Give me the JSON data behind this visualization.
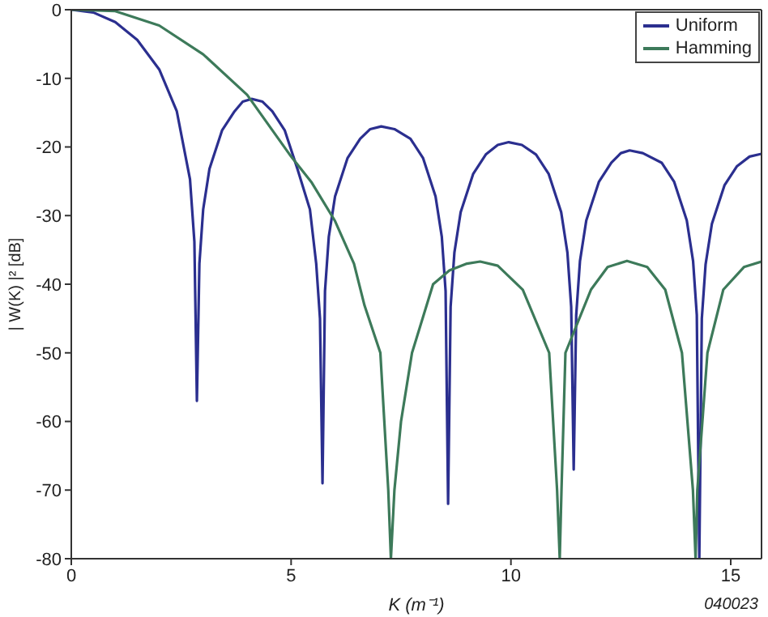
{
  "chart_data": {
    "type": "line",
    "xlabel": "K (m⁻¹)",
    "ylabel": "| W(K) |² [dB]",
    "xlim": [
      0,
      15.7
    ],
    "xticks": [
      0,
      5,
      10,
      15
    ],
    "ylim": [
      -80,
      0
    ],
    "yticks": [
      0,
      -10,
      -20,
      -30,
      -40,
      -50,
      -60,
      -70,
      -80
    ],
    "legend": "top right",
    "marker": "none",
    "line_style": "solid",
    "annotations": [
      "040023"
    ],
    "series": [
      {
        "name": "Uniform",
        "color": "#2b2f8f",
        "x": [
          0,
          0.5,
          1,
          1.5,
          2,
          2.4,
          2.7,
          2.8,
          2.857,
          2.914,
          3,
          3.143,
          3.428,
          3.714,
          3.9,
          4.1,
          4.35,
          4.571,
          4.857,
          5.143,
          5.428,
          5.571,
          5.657,
          5.714,
          5.771,
          5.857,
          6,
          6.285,
          6.571,
          6.8,
          7.05,
          7.35,
          7.714,
          8,
          8.285,
          8.428,
          8.514,
          8.571,
          8.628,
          8.714,
          8.857,
          9.143,
          9.428,
          9.7,
          9.95,
          10.25,
          10.571,
          10.857,
          11.143,
          11.285,
          11.371,
          11.428,
          11.485,
          11.571,
          11.714,
          12,
          12.285,
          12.5,
          12.7,
          13,
          13.428,
          13.714,
          14,
          14.143,
          14.228,
          14.285,
          14.342,
          14.428,
          14.571,
          14.857,
          15.143,
          15.428,
          15.7
        ],
        "values": [
          0,
          -0.4,
          -1.8,
          -4.4,
          -8.7,
          -14.8,
          -24.7,
          -33.8,
          -57,
          -37,
          -29.1,
          -23.2,
          -17.6,
          -14.8,
          -13.4,
          -13,
          -13.4,
          -14.8,
          -17.6,
          -23.2,
          -29.1,
          -37,
          -45,
          -69,
          -41,
          -33.1,
          -27.2,
          -21.6,
          -18.8,
          -17.4,
          -17,
          -17.4,
          -18.8,
          -21.6,
          -27.2,
          -33.1,
          -41,
          -72,
          -43.3,
          -35.4,
          -29.5,
          -23.9,
          -21.1,
          -19.7,
          -19.3,
          -19.7,
          -21.1,
          -23.9,
          -29.5,
          -35.4,
          -43.3,
          -67,
          -44.5,
          -36.6,
          -30.7,
          -25.1,
          -22.3,
          -20.9,
          -20.5,
          -20.9,
          -22.3,
          -25.1,
          -30.7,
          -36.6,
          -44.5,
          -80,
          -45,
          -37.1,
          -31.2,
          -25.6,
          -22.8,
          -21.4,
          -21
        ]
      },
      {
        "name": "Hamming",
        "color": "#3d7a5a",
        "x": [
          0,
          1,
          2,
          3,
          4,
          5,
          5.47,
          6,
          6.43,
          6.67,
          7.03,
          7.21,
          7.27,
          7.35,
          7.5,
          7.75,
          8.23,
          8.6,
          9,
          9.3,
          9.7,
          10.27,
          10.87,
          11.05,
          11.11,
          11.15,
          11.24,
          11.82,
          12.2,
          12.64,
          13.1,
          13.51,
          13.89,
          14.14,
          14.2,
          14.24,
          14.47,
          14.83,
          15.3,
          15.7
        ],
        "values": [
          0,
          -0.2,
          -2.3,
          -6.5,
          -12.4,
          -21.4,
          -25.2,
          -30.8,
          -37,
          -43.1,
          -50,
          -70,
          -80,
          -70,
          -60,
          -50,
          -40,
          -38,
          -37,
          -36.7,
          -37.3,
          -40.8,
          -50,
          -70,
          -80,
          -70,
          -50,
          -40.8,
          -37.5,
          -36.6,
          -37.5,
          -40.8,
          -50,
          -70,
          -80,
          -70,
          -50,
          -40.8,
          -37.5,
          -36.7
        ]
      }
    ]
  }
}
